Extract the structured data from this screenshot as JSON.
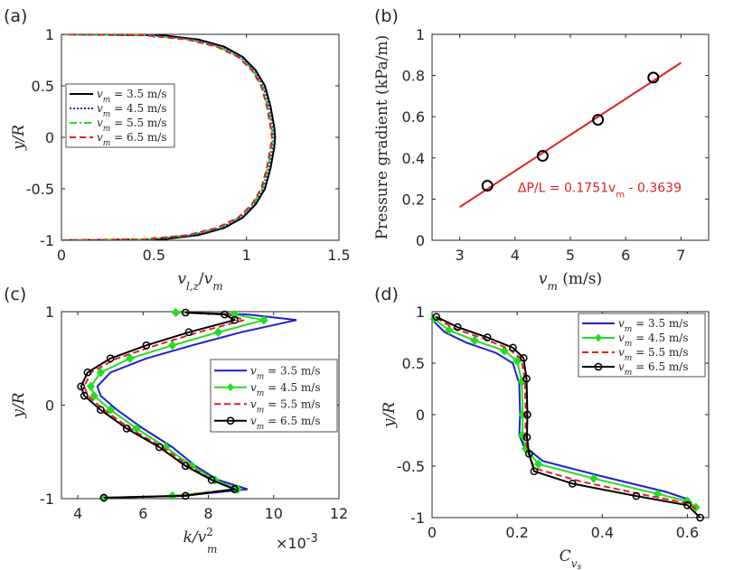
{
  "chart_data": [
    {
      "type": "line",
      "panel_label": "(a)",
      "xlabel": "v_{l,z}/v_m",
      "ylabel": "y/R",
      "xlim": [
        0,
        1.5
      ],
      "ylim": [
        -1,
        1
      ],
      "xticks": [
        0,
        0.5,
        1,
        1.5
      ],
      "xtick_labels": [
        "0",
        "0.5",
        "1",
        "1.5"
      ],
      "yticks": [
        -1,
        -0.5,
        0,
        0.5,
        1
      ],
      "ytick_labels": [
        "-1",
        "-0.5",
        "0",
        "0.5",
        "1"
      ],
      "legend_position": "middle-left",
      "series": [
        {
          "name": "v_m = 3.5 m/s",
          "color": "#000000",
          "dash": "solid",
          "marker": "none",
          "x": [
            0.0,
            0.55,
            0.74,
            0.88,
            0.98,
            1.05,
            1.1,
            1.13,
            1.15,
            1.155,
            1.15,
            1.13,
            1.1,
            1.05,
            0.98,
            0.88,
            0.74,
            0.55,
            0.0
          ],
          "y": [
            -1,
            -0.99,
            -0.95,
            -0.88,
            -0.78,
            -0.65,
            -0.5,
            -0.3,
            -0.1,
            0,
            0.1,
            0.3,
            0.5,
            0.65,
            0.78,
            0.88,
            0.95,
            0.99,
            1
          ]
        },
        {
          "name": "v_m = 4.5 m/s",
          "color": "#1f1fd0",
          "dash": "dotted",
          "marker": "none",
          "x": [
            0.0,
            0.5,
            0.71,
            0.86,
            0.97,
            1.04,
            1.09,
            1.12,
            1.14,
            1.147,
            1.14,
            1.12,
            1.09,
            1.04,
            0.97,
            0.86,
            0.71,
            0.5,
            0.0
          ],
          "y": [
            -1,
            -0.99,
            -0.95,
            -0.88,
            -0.78,
            -0.65,
            -0.5,
            -0.3,
            -0.1,
            0,
            0.1,
            0.3,
            0.5,
            0.65,
            0.78,
            0.88,
            0.95,
            0.99,
            1
          ]
        },
        {
          "name": "v_m = 5.5 m/s",
          "color": "#22dd22",
          "dash": "dashdot",
          "marker": "none",
          "x": [
            0.0,
            0.47,
            0.69,
            0.85,
            0.96,
            1.035,
            1.085,
            1.115,
            1.135,
            1.142,
            1.135,
            1.115,
            1.085,
            1.035,
            0.96,
            0.85,
            0.69,
            0.47,
            0.0
          ],
          "y": [
            -1,
            -0.99,
            -0.95,
            -0.88,
            -0.78,
            -0.65,
            -0.5,
            -0.3,
            -0.1,
            0,
            0.1,
            0.3,
            0.5,
            0.65,
            0.78,
            0.88,
            0.95,
            0.99,
            1
          ]
        },
        {
          "name": "v_m = 6.5 m/s",
          "color": "#e02020",
          "dash": "dashed",
          "marker": "none",
          "x": [
            0.0,
            0.45,
            0.68,
            0.84,
            0.955,
            1.03,
            1.08,
            1.11,
            1.13,
            1.138,
            1.13,
            1.11,
            1.08,
            1.03,
            0.955,
            0.84,
            0.68,
            0.45,
            0.0
          ],
          "y": [
            -1,
            -0.99,
            -0.95,
            -0.88,
            -0.78,
            -0.65,
            -0.5,
            -0.3,
            -0.1,
            0,
            0.1,
            0.3,
            0.5,
            0.65,
            0.78,
            0.88,
            0.95,
            0.99,
            1
          ]
        }
      ]
    },
    {
      "type": "scatter",
      "panel_label": "(b)",
      "xlabel": "v_m (m/s)",
      "ylabel": "Pressure gradient (kPa/m)",
      "xlim": [
        2.5,
        7.5
      ],
      "ylim": [
        0,
        1
      ],
      "xticks": [
        3,
        4,
        5,
        6,
        7
      ],
      "xtick_labels": [
        "3",
        "4",
        "5",
        "6",
        "7"
      ],
      "yticks": [
        0,
        0.2,
        0.4,
        0.6,
        0.8,
        1
      ],
      "ytick_labels": [
        "0",
        "0.2",
        "0.4",
        "0.6",
        "0.8",
        "1"
      ],
      "points": {
        "x": [
          3.5,
          4.5,
          5.5,
          6.5
        ],
        "y": [
          0.265,
          0.41,
          0.585,
          0.79
        ],
        "color": "#000000"
      },
      "fit_line": {
        "x": [
          3,
          7
        ],
        "slope": 0.1751,
        "intercept": -0.3639,
        "color": "#e02020"
      },
      "annotation": {
        "prefix": "ΔP/L = 0.1751v",
        "subscript": "m",
        "suffix": " - 0.3639",
        "color": "#e02020",
        "x": 4.05,
        "y": 0.235
      }
    },
    {
      "type": "line",
      "panel_label": "(c)",
      "xlabel": "k/v_m^2",
      "ylabel": "y/R",
      "exponent_label": "×10",
      "exponent_power": "-3",
      "xlim": [
        3.5,
        12
      ],
      "ylim": [
        -1,
        1
      ],
      "xticks": [
        4,
        6,
        8,
        10,
        12
      ],
      "xtick_labels": [
        "4",
        "6",
        "8",
        "10",
        "12"
      ],
      "yticks": [
        -1,
        0,
        1
      ],
      "ytick_labels": [
        "-1",
        "0",
        "1"
      ],
      "legend_position": "middle-right",
      "series": [
        {
          "name": "v_m = 3.5 m/s",
          "color": "#1f1fd0",
          "dash": "solid",
          "marker": "none",
          "x": [
            4.8,
            7.2,
            9.2,
            8.3,
            7.6,
            6.9,
            6.0,
            5.2,
            4.7,
            4.6,
            5.0,
            6.1,
            7.5,
            9.0,
            10.7,
            9.2,
            7.2
          ],
          "y": [
            -0.99,
            -0.97,
            -0.9,
            -0.8,
            -0.65,
            -0.45,
            -0.25,
            -0.05,
            0.1,
            0.2,
            0.35,
            0.5,
            0.64,
            0.78,
            0.91,
            0.97,
            0.99
          ]
        },
        {
          "name": "v_m = 4.5 m/s",
          "color": "#22dd22",
          "dash": "solid",
          "marker": "diamond",
          "x": [
            4.8,
            6.9,
            8.9,
            8.2,
            7.5,
            6.7,
            5.8,
            5.0,
            4.5,
            4.4,
            4.7,
            5.6,
            6.9,
            8.3,
            9.7,
            8.8,
            7.0
          ],
          "y": [
            -0.99,
            -0.97,
            -0.9,
            -0.8,
            -0.65,
            -0.45,
            -0.25,
            -0.05,
            0.1,
            0.2,
            0.35,
            0.5,
            0.64,
            0.78,
            0.91,
            0.97,
            0.99
          ]
        },
        {
          "name": "v_m = 5.5 m/s",
          "color": "#e02020",
          "dash": "dashed",
          "marker": "none",
          "x": [
            4.8,
            7.1,
            8.8,
            8.1,
            7.4,
            6.6,
            5.6,
            4.8,
            4.3,
            4.2,
            4.4,
            5.2,
            6.4,
            7.7,
            9.1,
            8.6,
            7.2
          ],
          "y": [
            -0.99,
            -0.97,
            -0.9,
            -0.8,
            -0.65,
            -0.45,
            -0.25,
            -0.05,
            0.1,
            0.2,
            0.35,
            0.5,
            0.64,
            0.78,
            0.91,
            0.97,
            0.99
          ]
        },
        {
          "name": "v_m = 6.5 m/s",
          "color": "#000000",
          "dash": "solid",
          "marker": "circle",
          "x": [
            4.8,
            7.3,
            8.8,
            8.1,
            7.3,
            6.5,
            5.5,
            4.7,
            4.2,
            4.1,
            4.3,
            5.0,
            6.1,
            7.4,
            8.8,
            8.5,
            7.3
          ],
          "y": [
            -0.99,
            -0.97,
            -0.9,
            -0.8,
            -0.65,
            -0.45,
            -0.25,
            -0.05,
            0.1,
            0.2,
            0.35,
            0.5,
            0.64,
            0.78,
            0.91,
            0.97,
            0.99
          ]
        }
      ]
    },
    {
      "type": "line",
      "panel_label": "(d)",
      "xlabel": "C_{v_s}",
      "ylabel": "y/R",
      "xlim": [
        0,
        0.65
      ],
      "ylim": [
        -1,
        1
      ],
      "xticks": [
        0,
        0.2,
        0.4,
        0.6
      ],
      "xtick_labels": [
        "0",
        "0.2",
        "0.4",
        "0.6"
      ],
      "yticks": [
        -1,
        -0.5,
        0,
        0.5,
        1
      ],
      "ytick_labels": [
        "-1",
        "-0.5",
        "0",
        "0.5",
        "1"
      ],
      "legend_position": "top-right",
      "series": [
        {
          "name": "v_m = 3.5 m/s",
          "color": "#1f1fd0",
          "dash": "solid",
          "marker": "none",
          "x": [
            0.005,
            0.03,
            0.08,
            0.15,
            0.19,
            0.205,
            0.207,
            0.205,
            0.215,
            0.26,
            0.4,
            0.55,
            0.6,
            0.61
          ],
          "y": [
            0.9,
            0.8,
            0.7,
            0.6,
            0.5,
            0.3,
            0.0,
            -0.2,
            -0.3,
            -0.45,
            -0.6,
            -0.75,
            -0.82,
            -0.86
          ]
        },
        {
          "name": "v_m = 4.5 m/s",
          "color": "#22dd22",
          "dash": "solid",
          "marker": "diamond",
          "x": [
            0.005,
            0.04,
            0.1,
            0.17,
            0.2,
            0.211,
            0.213,
            0.212,
            0.22,
            0.25,
            0.38,
            0.53,
            0.6,
            0.62
          ],
          "y": [
            0.93,
            0.82,
            0.72,
            0.62,
            0.52,
            0.32,
            0.0,
            -0.2,
            -0.33,
            -0.48,
            -0.62,
            -0.77,
            -0.84,
            -0.9
          ]
        },
        {
          "name": "v_m = 5.5 m/s",
          "color": "#e02020",
          "dash": "dashed",
          "marker": "none",
          "x": [
            0.01,
            0.05,
            0.12,
            0.18,
            0.21,
            0.218,
            0.22,
            0.219,
            0.225,
            0.24,
            0.35,
            0.5,
            0.6,
            0.625
          ],
          "y": [
            0.94,
            0.84,
            0.74,
            0.64,
            0.54,
            0.34,
            0.0,
            -0.22,
            -0.36,
            -0.52,
            -0.65,
            -0.78,
            -0.86,
            -0.93
          ]
        },
        {
          "name": "v_m = 6.5 m/s",
          "color": "#000000",
          "dash": "solid",
          "marker": "circle",
          "x": [
            0.01,
            0.06,
            0.13,
            0.19,
            0.215,
            0.222,
            0.224,
            0.223,
            0.228,
            0.24,
            0.33,
            0.48,
            0.6,
            0.63
          ],
          "y": [
            0.95,
            0.85,
            0.75,
            0.65,
            0.55,
            0.35,
            0.0,
            -0.22,
            -0.38,
            -0.55,
            -0.67,
            -0.79,
            -0.88,
            -1.0
          ]
        }
      ]
    }
  ]
}
